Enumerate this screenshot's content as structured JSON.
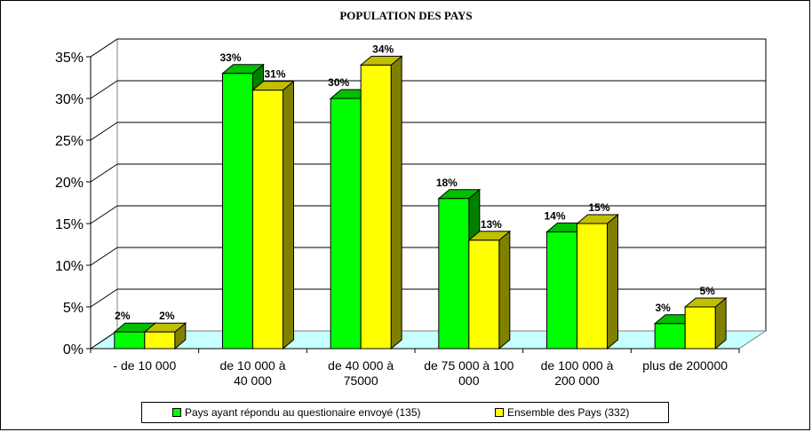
{
  "chart_data": {
    "type": "bar",
    "title": "POPULATION DES PAYS",
    "categories": [
      [
        "- de 10 000"
      ],
      [
        "de 10 000 à",
        "40 000"
      ],
      [
        "de 40 000 à",
        "75000"
      ],
      [
        "de 75 000 à 100",
        "000"
      ],
      [
        "de 100 000 à",
        "200 000"
      ],
      [
        "plus de 200000"
      ]
    ],
    "series": [
      {
        "name": "Pays ayant répondu au questionaire envoyé (135)",
        "color": "#00ff00",
        "values": [
          2,
          33,
          30,
          18,
          14,
          3
        ],
        "labels": [
          "2%",
          "33%",
          "30%",
          "18%",
          "14%",
          "3%"
        ]
      },
      {
        "name": "Ensemble des Pays (332)",
        "color": "#ffff00",
        "values": [
          2,
          31,
          34,
          13,
          15,
          5
        ],
        "labels": [
          "2%",
          "31%",
          "34%",
          "13%",
          "15%",
          "5%"
        ]
      }
    ],
    "ylim": [
      0,
      35
    ],
    "yticks": [
      "0%",
      "5%",
      "10%",
      "15%",
      "20%",
      "25%",
      "30%",
      "35%"
    ],
    "ytick_values": [
      0,
      5,
      10,
      15,
      20,
      25,
      30,
      35
    ],
    "xlabel": "",
    "ylabel": "",
    "grid": true,
    "legend_position": "bottom"
  }
}
